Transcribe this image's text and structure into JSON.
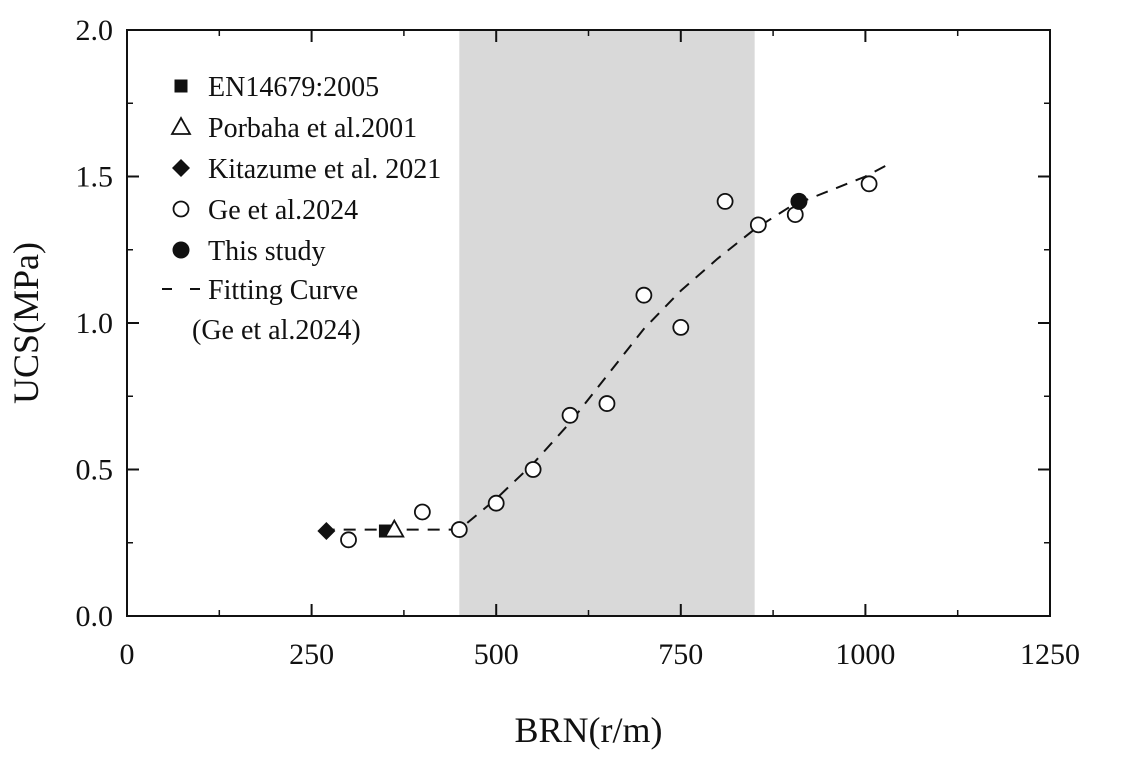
{
  "chart_data": {
    "type": "scatter",
    "xlabel": "BRN(r/m)",
    "ylabel": "UCS(MPa)",
    "xlim": [
      0,
      1250
    ],
    "ylim": [
      0,
      2.0
    ],
    "xticks": [
      0,
      250,
      500,
      750,
      1000,
      1250
    ],
    "yticks": [
      0.0,
      0.5,
      1.0,
      1.5,
      2.0
    ],
    "xtick_labels": [
      "0",
      "250",
      "500",
      "750",
      "1000",
      "1250"
    ],
    "ytick_labels": [
      "0.0",
      "0.5",
      "1.0",
      "1.5",
      "2.0"
    ],
    "shaded_region": {
      "x": [
        450,
        850
      ],
      "color": "#d9d9d9"
    },
    "grid": false,
    "legend_position": "top-left",
    "series": [
      {
        "name": "EN14679:2005",
        "marker": "square-filled",
        "points": [
          [
            350,
            0.29
          ]
        ]
      },
      {
        "name": "Porbaha et al.2001",
        "marker": "triangle-open",
        "points": [
          [
            362,
            0.295
          ]
        ]
      },
      {
        "name": "Kitazume et al. 2021",
        "marker": "diamond-filled",
        "points": [
          [
            270,
            0.29
          ]
        ]
      },
      {
        "name": "Ge et al.2024",
        "marker": "circle-open",
        "points": [
          [
            300,
            0.26
          ],
          [
            400,
            0.355
          ],
          [
            450,
            0.295
          ],
          [
            500,
            0.385
          ],
          [
            550,
            0.5
          ],
          [
            600,
            0.685
          ],
          [
            650,
            0.725
          ],
          [
            700,
            1.095
          ],
          [
            750,
            0.985
          ],
          [
            810,
            1.415
          ],
          [
            855,
            1.335
          ],
          [
            905,
            1.37
          ],
          [
            1005,
            1.475
          ]
        ]
      },
      {
        "name": "This study",
        "marker": "circle-filled",
        "points": [
          [
            910,
            1.415
          ]
        ]
      }
    ],
    "fit_curve": {
      "name": "Fitting Curve",
      "name_line2": "(Ge et al.2024)",
      "style": "dashed",
      "points": [
        [
          265,
          0.295
        ],
        [
          450,
          0.295
        ],
        [
          500,
          0.4
        ],
        [
          550,
          0.52
        ],
        [
          600,
          0.66
        ],
        [
          650,
          0.82
        ],
        [
          700,
          0.98
        ],
        [
          750,
          1.11
        ],
        [
          800,
          1.22
        ],
        [
          850,
          1.32
        ],
        [
          900,
          1.4
        ],
        [
          950,
          1.45
        ],
        [
          1000,
          1.5
        ],
        [
          1030,
          1.54
        ]
      ]
    }
  }
}
